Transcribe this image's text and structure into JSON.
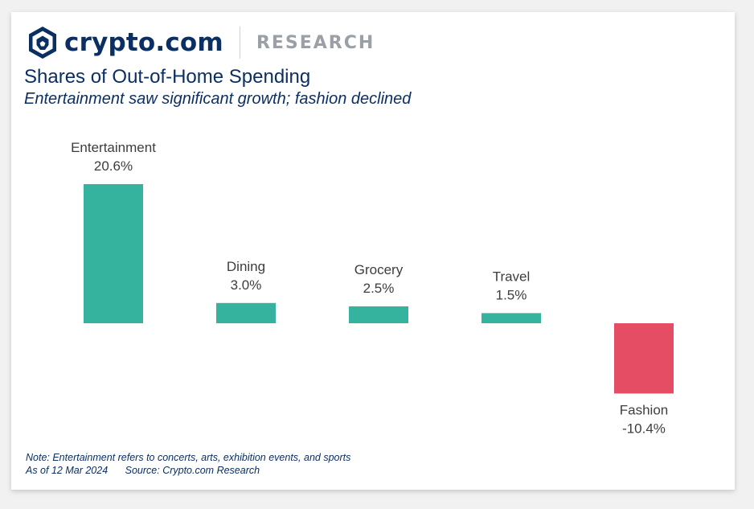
{
  "header": {
    "brand": "crypto.com",
    "section": "RESEARCH",
    "title": "Shares of Out-of-Home Spending",
    "subtitle": "Entertainment saw significant growth; fashion declined"
  },
  "footer": {
    "note": "Note: Entertainment refers to concerts, arts, exhibition events, and sports",
    "as_of": "As of 12 Mar 2024",
    "source": "Source: Crypto.com Research"
  },
  "colors": {
    "positive": "#35b39f",
    "negative": "#e44d63",
    "brand": "#0b2f63"
  },
  "chart_data": {
    "type": "bar",
    "title": "Shares of Out-of-Home Spending",
    "subtitle": "Entertainment saw significant growth; fashion declined",
    "categories": [
      "Entertainment",
      "Dining",
      "Grocery",
      "Travel",
      "Fashion"
    ],
    "values": [
      20.6,
      3.0,
      2.5,
      1.5,
      -10.4
    ],
    "value_labels": [
      "20.6%",
      "3.0%",
      "2.5%",
      "1.5%",
      "-10.4%"
    ],
    "unit": "%",
    "ylim": [
      -10.4,
      20.6
    ],
    "grid": false,
    "legend": "none"
  }
}
